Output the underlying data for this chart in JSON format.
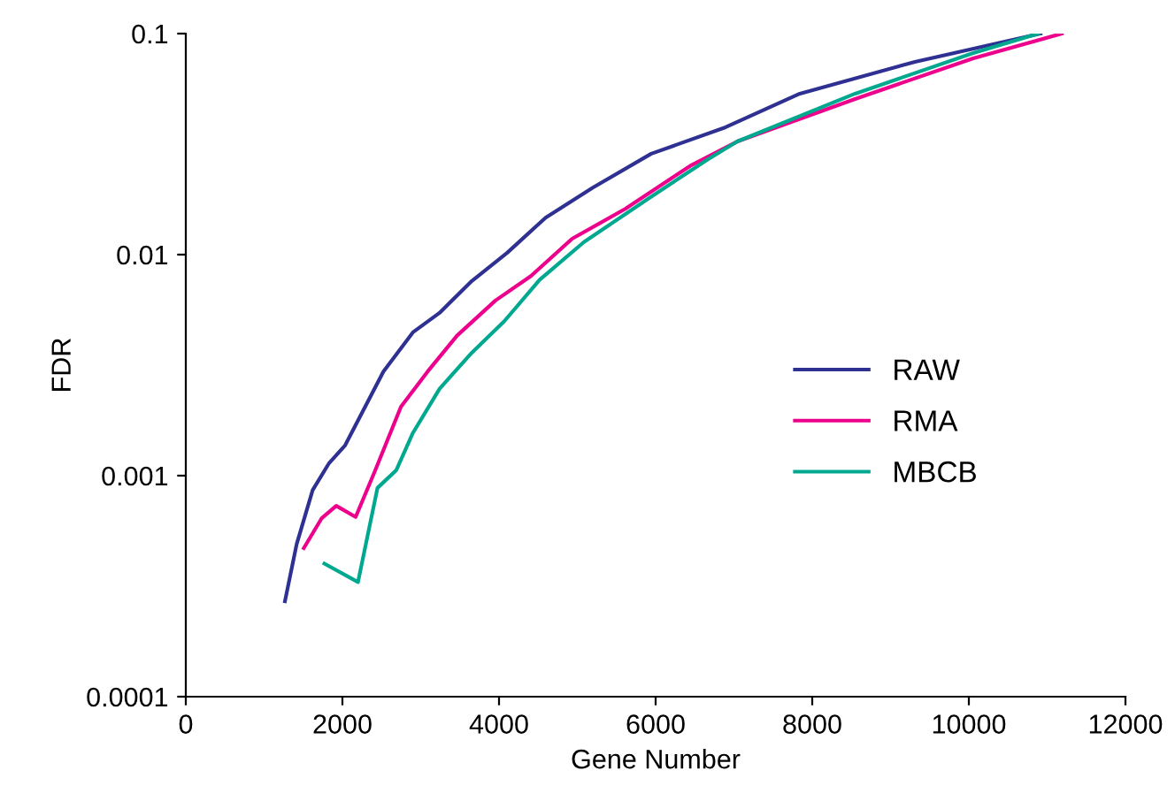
{
  "chart_data": {
    "type": "line",
    "xlabel": "Gene Number",
    "ylabel": "FDR",
    "log": "y",
    "xlim": [
      0,
      12000
    ],
    "xticks": [
      0,
      2000,
      4000,
      6000,
      8000,
      10000,
      12000
    ],
    "ylim": [
      0.0001,
      0.1
    ],
    "yticks": [
      0.0001,
      0.001,
      0.01,
      0.1
    ],
    "grid": false,
    "legend": "right",
    "marker": "none",
    "line_style": "solid",
    "series": [
      {
        "name": "RAW",
        "color": "#2e3192",
        "x": [
          1266,
          1416,
          1620,
          1830,
          2034,
          2524,
          2900,
          3240,
          3653,
          4105,
          4595,
          5198,
          5944,
          6893,
          7842,
          9311,
          10915
        ],
        "values": [
          0.00027,
          0.00049,
          0.00086,
          0.00114,
          0.00137,
          0.00296,
          0.00445,
          0.00545,
          0.0076,
          0.0102,
          0.0147,
          0.0201,
          0.0286,
          0.0377,
          0.0535,
          0.0745,
          0.1
        ]
      },
      {
        "name": "RMA",
        "color": "#ec008c",
        "x": [
          1507,
          1733,
          1921,
          2169,
          2411,
          2748,
          3089,
          3464,
          3955,
          4407,
          4934,
          5612,
          6441,
          7043,
          8547,
          10056,
          11186
        ],
        "values": [
          0.00047,
          0.00064,
          0.00073,
          0.00065,
          0.00104,
          0.00205,
          0.00296,
          0.0043,
          0.0062,
          0.008,
          0.0118,
          0.0161,
          0.0252,
          0.0325,
          0.0506,
          0.0773,
          0.1
        ]
      },
      {
        "name": "MBCB",
        "color": "#00a88f",
        "x": [
          1770,
          2199,
          2448,
          2689,
          2900,
          3240,
          3653,
          4068,
          4520,
          5085,
          5914,
          6667,
          7043,
          8548,
          10056,
          10885
        ],
        "values": [
          0.0004,
          0.00033,
          0.00088,
          0.00106,
          0.00156,
          0.00247,
          0.0036,
          0.005,
          0.0077,
          0.0114,
          0.018,
          0.027,
          0.0325,
          0.0535,
          0.0817,
          0.1
        ]
      }
    ]
  }
}
